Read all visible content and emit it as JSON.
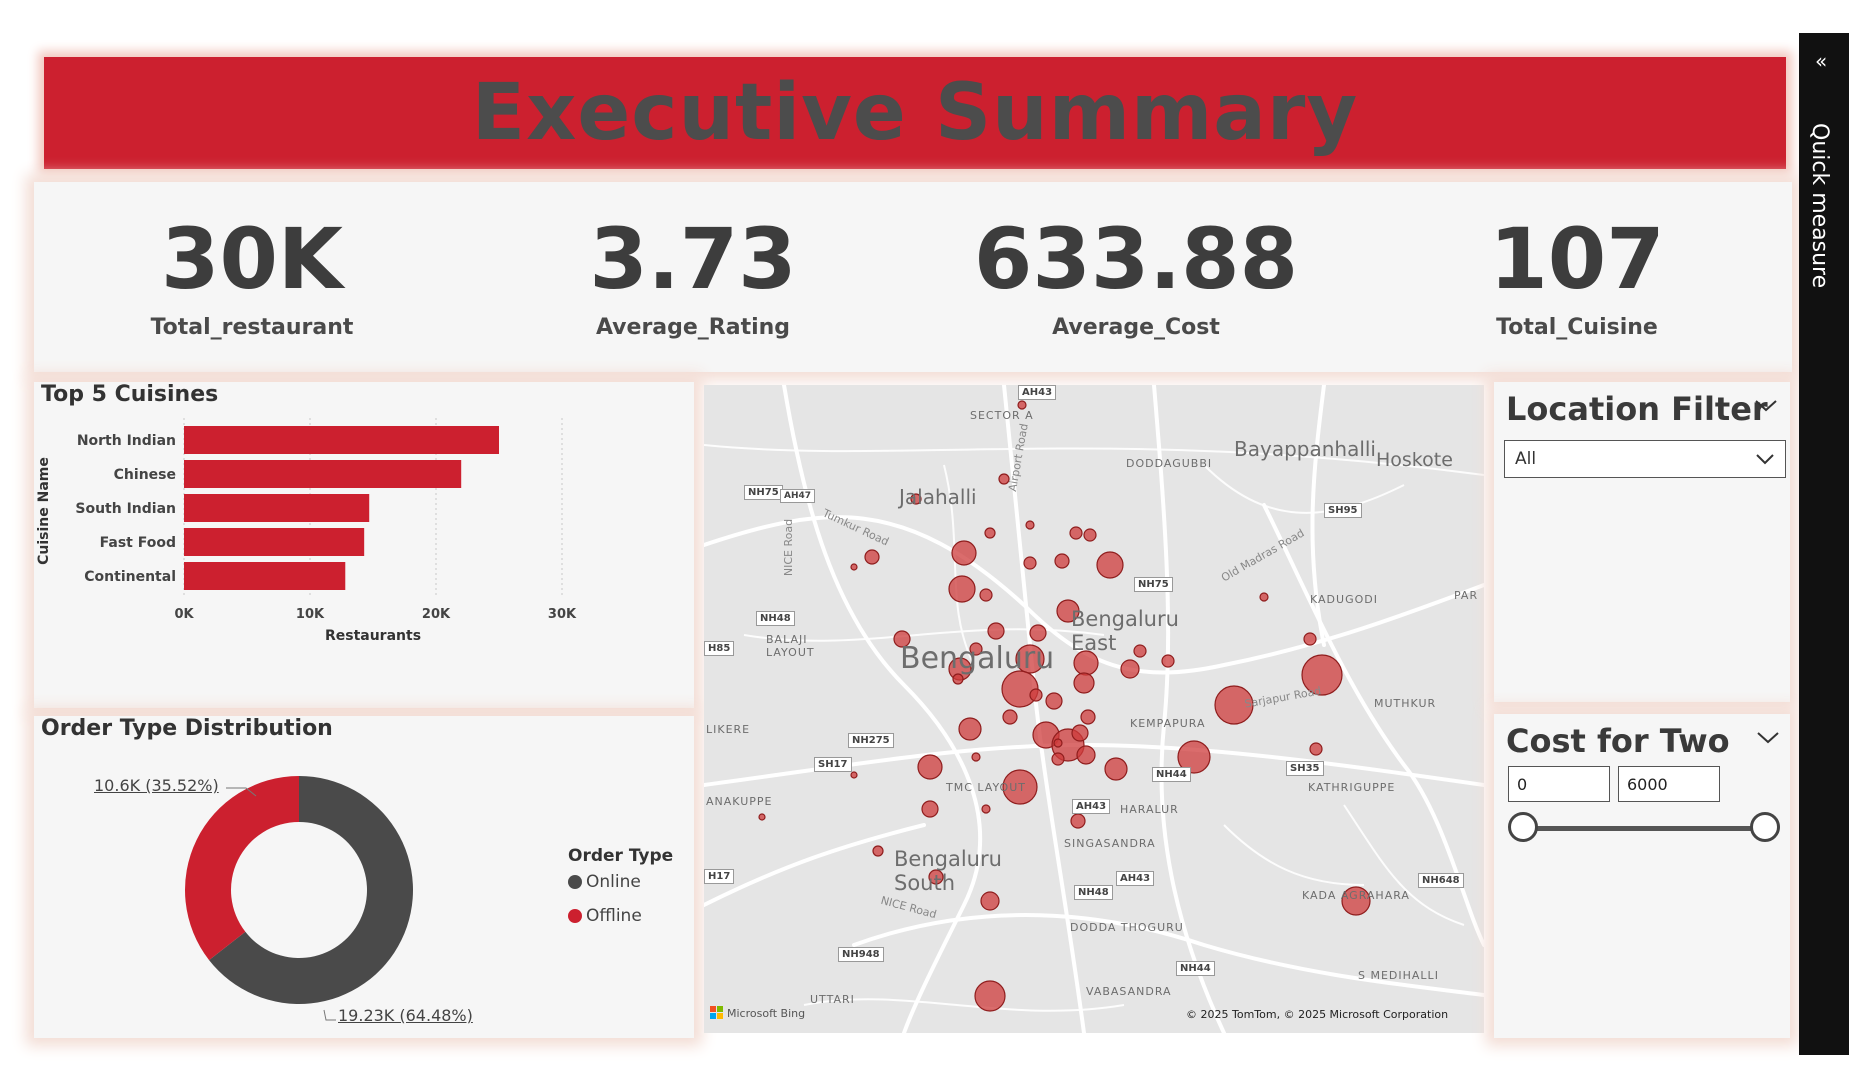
{
  "header": {
    "title": "Executive Summary"
  },
  "kpis": [
    {
      "value": "30K",
      "label": "Total_restaurant"
    },
    {
      "value": "3.73",
      "label": "Average_Rating"
    },
    {
      "value": "633.88",
      "label": "Average_Cost"
    },
    {
      "value": "107",
      "label": "Total_Cuisine"
    }
  ],
  "top_cuisines": {
    "title": "Top 5 Cuisines",
    "ylabel": "Cuisine Name",
    "xlabel": "Restaurants",
    "ticks": [
      "0K",
      "10K",
      "20K",
      "30K"
    ]
  },
  "order_type": {
    "title": "Order Type Distribution",
    "legend_title": "Order Type",
    "online_label": "19.23K (64.48%)",
    "offline_label": "10.6K (35.52%)",
    "legend": [
      "Online",
      "Offline"
    ]
  },
  "chart_data": [
    {
      "type": "bar",
      "orientation": "horizontal",
      "title": "Top 5 Cuisines",
      "categories": [
        "North Indian",
        "Chinese",
        "South Indian",
        "Fast Food",
        "Continental"
      ],
      "values": [
        25000,
        22000,
        14700,
        14300,
        12800
      ],
      "xlabel": "Restaurants",
      "ylabel": "Cuisine Name",
      "xlim": [
        0,
        30000
      ],
      "color": "#cc202f"
    },
    {
      "type": "pie",
      "subtype": "donut",
      "title": "Order Type Distribution",
      "legend_title": "Order Type",
      "categories": [
        "Online",
        "Offline"
      ],
      "values": [
        19230,
        10600
      ],
      "percents": [
        64.48,
        35.52
      ],
      "colors": [
        "#4a4a4a",
        "#cc202f"
      ],
      "legend_position": "right"
    }
  ],
  "map": {
    "labels": [
      "Bengaluru",
      "Bengaluru East",
      "Bengaluru South",
      "Jalahalli",
      "Bayappanhalli",
      "Hoskote",
      "DODDAGUBBI",
      "KADUGODI",
      "SECTOR A",
      "BALAJI LAYOUT",
      "KEMPAPURA",
      "HARALUR",
      "SINGASANDRA",
      "KATHRIGUPPE",
      "MUTHKUR",
      "KADA AGRAHARA",
      "DODDA THOGURU",
      "VABASANDRA",
      "UTTARI",
      "S MEDIHALLI",
      "LIKERE",
      "ANAKUPPE",
      "TMC LAYOUT",
      "PAR"
    ],
    "road_labels": [
      "NH75",
      "AH47",
      "NH48",
      "SH17",
      "NH275",
      "SH95",
      "NH75",
      "SH35",
      "NH648",
      "NH948",
      "NH44",
      "AH43",
      "NH48",
      "AH43",
      "NH44",
      "H85",
      "H17",
      "AH43"
    ],
    "road_names": [
      "Tumkur Road",
      "Old Madras Road",
      "Airport Road",
      "NICE Road",
      "NICE Road",
      "Sarjapur Road"
    ],
    "attribution_left": "Microsoft Bing",
    "attribution_right": "© 2025 TomTom, © 2025 Microsoft Corporation"
  },
  "location_filter": {
    "title": "Location Filter",
    "selected": "All"
  },
  "cost_filter": {
    "title": "Cost for Two",
    "min": "0",
    "max": "6000",
    "slider_low_fraction": 0,
    "slider_high_fraction": 1
  },
  "side_pane": {
    "label": "Quick measure",
    "collapse_icon": "«"
  },
  "colors": {
    "accent": "#cc202f",
    "dark": "#4a4a4a"
  }
}
